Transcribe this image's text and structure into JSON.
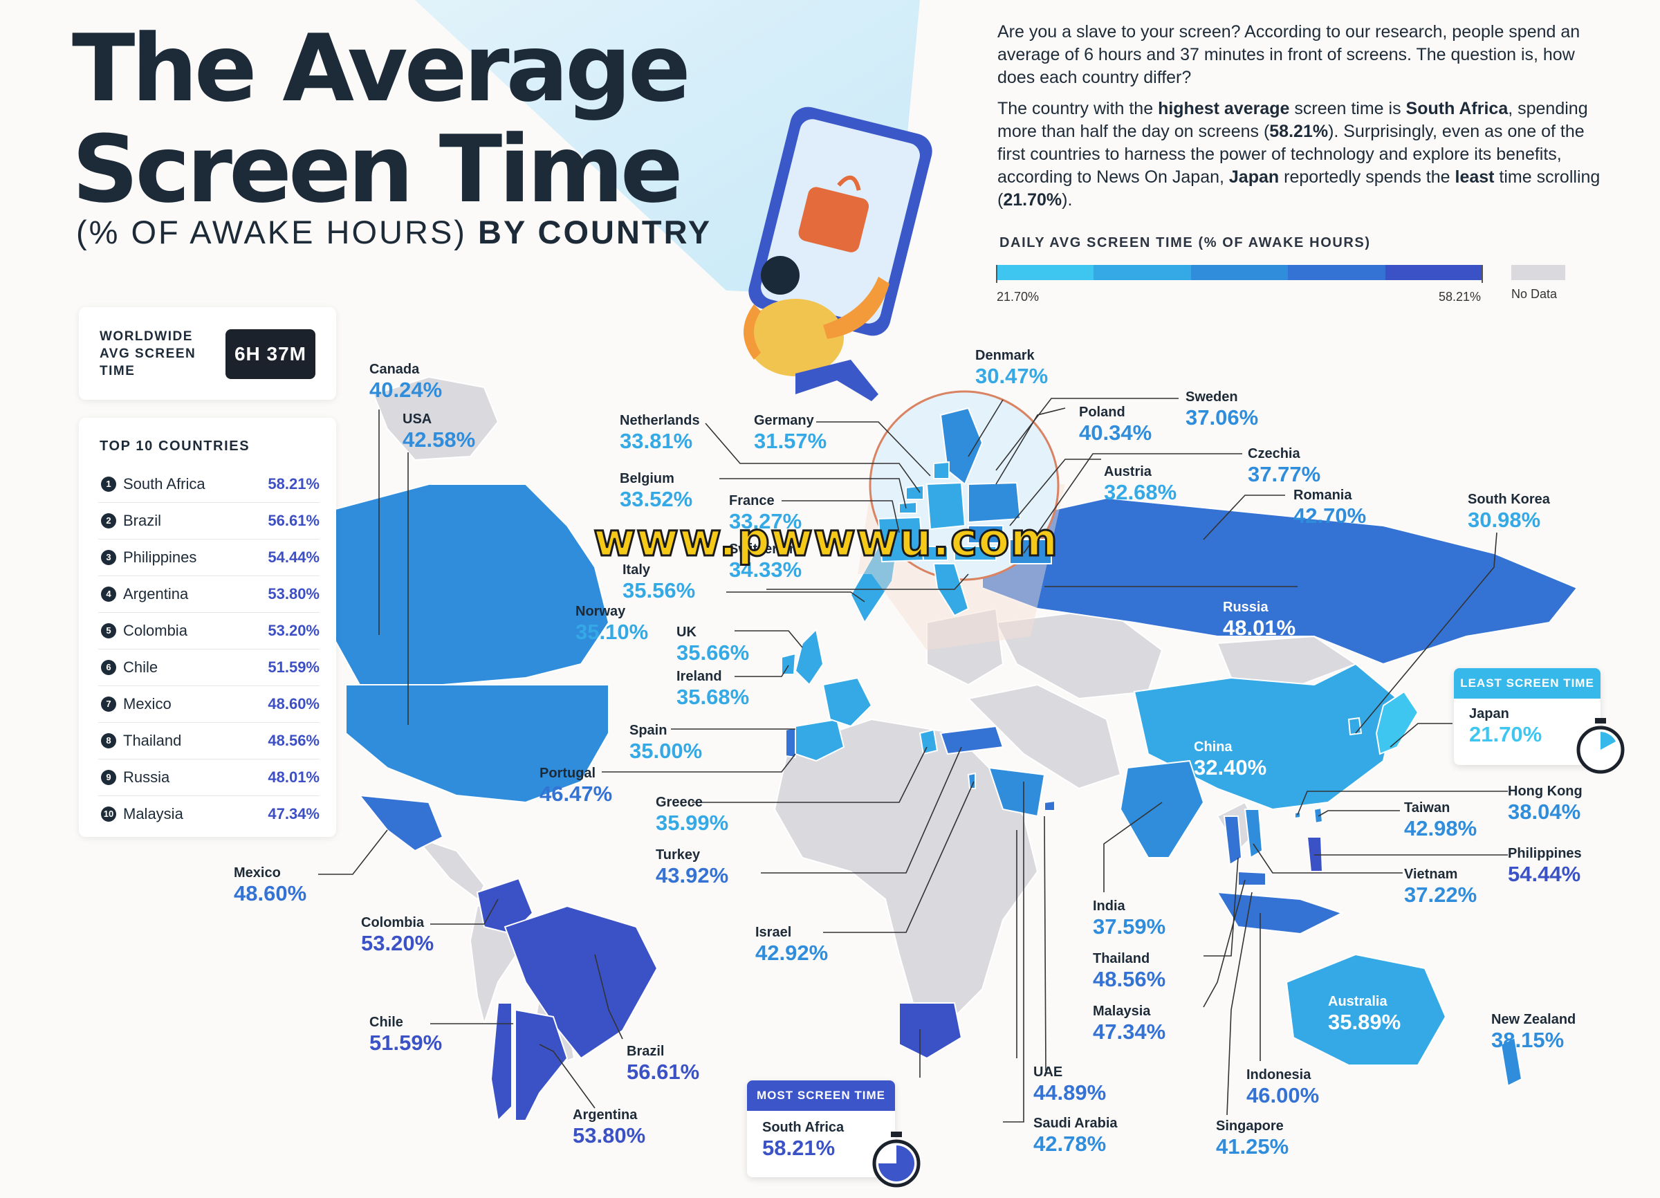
{
  "header": {
    "title_line1": "The Average",
    "title_line2": "Screen Time",
    "subtitle_plain": "(% OF AWAKE HOURS) ",
    "subtitle_bold": "BY COUNTRY"
  },
  "intro": {
    "p1": "Are you a slave to your screen? According to our research, people spend an average of 6 hours and 37 minutes in front of screens. The question is, how does each country differ?",
    "p2_a": "The country with the ",
    "p2_b": "highest average",
    "p2_c": " screen time is ",
    "p2_d": "South Africa",
    "p2_e": ", spending more than half the day on screens (",
    "p2_f": "58.21%",
    "p2_g": "). Surprisingly, even as one of the first countries to harness the power of technology and explore its benefits, according to News On Japan, ",
    "p2_h": "Japan",
    "p2_i": " reportedly spends the ",
    "p2_j": "least",
    "p2_k": " time scrolling (",
    "p2_l": "21.70%",
    "p2_m": ")."
  },
  "legend": {
    "title": "DAILY AVG SCREEN TIME (% OF AWAKE HOURS)",
    "min": "21.70%",
    "max": "58.21%",
    "no_data": "No Data",
    "scale_colors": [
      "#3fc6f0",
      "#34a9e6",
      "#2f8ddc",
      "#3472d4",
      "#3b52c6"
    ],
    "no_data_color": "#dad9de"
  },
  "worldwide": {
    "label": "WORLDWIDE AVG SCREEN TIME",
    "value": "6H 37M"
  },
  "top10": {
    "title": "TOP 10 COUNTRIES",
    "rows": [
      {
        "rank": "1",
        "country": "South Africa",
        "value": "58.21%"
      },
      {
        "rank": "2",
        "country": "Brazil",
        "value": "56.61%"
      },
      {
        "rank": "3",
        "country": "Philippines",
        "value": "54.44%"
      },
      {
        "rank": "4",
        "country": "Argentina",
        "value": "53.80%"
      },
      {
        "rank": "5",
        "country": "Colombia",
        "value": "53.20%"
      },
      {
        "rank": "6",
        "country": "Chile",
        "value": "51.59%"
      },
      {
        "rank": "7",
        "country": "Mexico",
        "value": "48.60%"
      },
      {
        "rank": "8",
        "country": "Thailand",
        "value": "48.56%"
      },
      {
        "rank": "9",
        "country": "Russia",
        "value": "48.01%"
      },
      {
        "rank": "10",
        "country": "Malaysia",
        "value": "47.34%"
      }
    ]
  },
  "countries": {
    "canada": {
      "name": "Canada",
      "value": "40.24%",
      "pct": 40.24
    },
    "usa": {
      "name": "USA",
      "value": "42.58%",
      "pct": 42.58
    },
    "mexico": {
      "name": "Mexico",
      "value": "48.60%",
      "pct": 48.6
    },
    "colombia": {
      "name": "Colombia",
      "value": "53.20%",
      "pct": 53.2
    },
    "chile": {
      "name": "Chile",
      "value": "51.59%",
      "pct": 51.59
    },
    "brazil": {
      "name": "Brazil",
      "value": "56.61%",
      "pct": 56.61
    },
    "argentina": {
      "name": "Argentina",
      "value": "53.80%",
      "pct": 53.8
    },
    "netherlands": {
      "name": "Netherlands",
      "value": "33.81%",
      "pct": 33.81
    },
    "belgium": {
      "name": "Belgium",
      "value": "33.52%",
      "pct": 33.52
    },
    "germany": {
      "name": "Germany",
      "value": "31.57%",
      "pct": 31.57
    },
    "france": {
      "name": "France",
      "value": "33.27%",
      "pct": 33.27
    },
    "switzerland": {
      "name": "Switzerland",
      "value": "34.33%",
      "pct": 34.33
    },
    "italy": {
      "name": "Italy",
      "value": "35.56%",
      "pct": 35.56
    },
    "norway": {
      "name": "Norway",
      "value": "35.10%",
      "pct": 35.1
    },
    "uk": {
      "name": "UK",
      "value": "35.66%",
      "pct": 35.66
    },
    "ireland": {
      "name": "Ireland",
      "value": "35.68%",
      "pct": 35.68
    },
    "spain": {
      "name": "Spain",
      "value": "35.00%",
      "pct": 35.0
    },
    "portugal": {
      "name": "Portugal",
      "value": "46.47%",
      "pct": 46.47
    },
    "greece": {
      "name": "Greece",
      "value": "35.99%",
      "pct": 35.99
    },
    "turkey": {
      "name": "Turkey",
      "value": "43.92%",
      "pct": 43.92
    },
    "israel": {
      "name": "Israel",
      "value": "42.92%",
      "pct": 42.92
    },
    "denmark": {
      "name": "Denmark",
      "value": "30.47%",
      "pct": 30.47
    },
    "poland": {
      "name": "Poland",
      "value": "40.34%",
      "pct": 40.34
    },
    "sweden": {
      "name": "Sweden",
      "value": "37.06%",
      "pct": 37.06
    },
    "austria": {
      "name": "Austria",
      "value": "32.68%",
      "pct": 32.68
    },
    "czechia": {
      "name": "Czechia",
      "value": "37.77%",
      "pct": 37.77
    },
    "romania": {
      "name": "Romania",
      "value": "42.70%",
      "pct": 42.7
    },
    "russia": {
      "name": "Russia",
      "value": "48.01%",
      "pct": 48.01
    },
    "south_korea": {
      "name": "South Korea",
      "value": "30.98%",
      "pct": 30.98
    },
    "china": {
      "name": "China",
      "value": "32.40%",
      "pct": 32.4
    },
    "japan": {
      "name": "Japan",
      "value": "21.70%",
      "pct": 21.7
    },
    "hong_kong": {
      "name": "Hong Kong",
      "value": "38.04%",
      "pct": 38.04
    },
    "taiwan": {
      "name": "Taiwan",
      "value": "42.98%",
      "pct": 42.98
    },
    "philippines": {
      "name": "Philippines",
      "value": "54.44%",
      "pct": 54.44
    },
    "vietnam": {
      "name": "Vietnam",
      "value": "37.22%",
      "pct": 37.22
    },
    "india": {
      "name": "India",
      "value": "37.59%",
      "pct": 37.59
    },
    "thailand": {
      "name": "Thailand",
      "value": "48.56%",
      "pct": 48.56
    },
    "malaysia": {
      "name": "Malaysia",
      "value": "47.34%",
      "pct": 47.34
    },
    "indonesia": {
      "name": "Indonesia",
      "value": "46.00%",
      "pct": 46.0
    },
    "singapore": {
      "name": "Singapore",
      "value": "41.25%",
      "pct": 41.25
    },
    "australia": {
      "name": "Australia",
      "value": "35.89%",
      "pct": 35.89
    },
    "new_zealand": {
      "name": "New Zealand",
      "value": "38.15%",
      "pct": 38.15
    },
    "uae": {
      "name": "UAE",
      "value": "44.89%",
      "pct": 44.89
    },
    "saudi_arabia": {
      "name": "Saudi Arabia",
      "value": "42.78%",
      "pct": 42.78
    },
    "south_africa": {
      "name": "South Africa",
      "value": "58.21%",
      "pct": 58.21
    }
  },
  "callouts": {
    "most": "MOST SCREEN TIME",
    "least": "LEAST SCREEN TIME"
  },
  "watermark": "www.pwwwu.com"
}
